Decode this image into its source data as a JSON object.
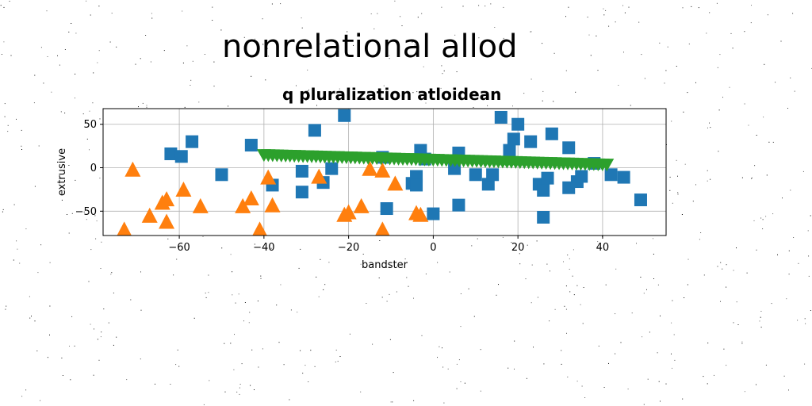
{
  "figure": {
    "suptitle": "nonrelational allod"
  },
  "chart_data": {
    "type": "scatter",
    "title": "q pluralization atloidean",
    "xlabel": "bandster",
    "ylabel": "extrusive",
    "xlim": [
      -78,
      55
    ],
    "ylim": [
      -78,
      68
    ],
    "xticks": [
      -60,
      -40,
      -20,
      0,
      20,
      40
    ],
    "yticks": [
      -50,
      0,
      50
    ],
    "xtick_labels": [
      "−60",
      "−40",
      "−20",
      "0",
      "20",
      "40"
    ],
    "ytick_labels": [
      "−50",
      "0",
      "50"
    ],
    "grid": true,
    "series": [
      {
        "marker": "square",
        "color": "#1f77b4",
        "points": [
          [
            -62,
            16
          ],
          [
            -59.5,
            13
          ],
          [
            -57,
            30
          ],
          [
            -50,
            -8
          ],
          [
            -43,
            26
          ],
          [
            -38,
            -20
          ],
          [
            -31,
            -4
          ],
          [
            -31,
            -28
          ],
          [
            -28,
            43
          ],
          [
            -26,
            -17
          ],
          [
            -24,
            -1
          ],
          [
            -21,
            60
          ],
          [
            -12,
            12
          ],
          [
            -11,
            -47
          ],
          [
            -5,
            -18
          ],
          [
            -4,
            -10
          ],
          [
            -4,
            -20
          ],
          [
            -3,
            20
          ],
          [
            -2,
            10
          ],
          [
            0,
            -53
          ],
          [
            5,
            -1
          ],
          [
            6,
            17
          ],
          [
            6,
            -43
          ],
          [
            10,
            -8
          ],
          [
            13,
            -19
          ],
          [
            14,
            -8
          ],
          [
            16,
            58
          ],
          [
            18,
            20
          ],
          [
            19,
            33
          ],
          [
            20,
            50
          ],
          [
            23,
            30
          ],
          [
            25,
            -19
          ],
          [
            26,
            -26
          ],
          [
            26,
            -57
          ],
          [
            27,
            -12
          ],
          [
            28,
            39
          ],
          [
            32,
            23
          ],
          [
            32,
            -23
          ],
          [
            34,
            -16
          ],
          [
            35,
            -10
          ],
          [
            38,
            5
          ],
          [
            42,
            -8
          ],
          [
            45,
            -11
          ],
          [
            49,
            -37
          ]
        ]
      },
      {
        "marker": "triangle-up",
        "color": "#ff7f0e",
        "points": [
          [
            -73,
            -72
          ],
          [
            -71,
            -3
          ],
          [
            -67,
            -56
          ],
          [
            -64,
            -41
          ],
          [
            -63,
            -37
          ],
          [
            -63,
            -63
          ],
          [
            -59,
            -26
          ],
          [
            -55,
            -45
          ],
          [
            -45,
            -45
          ],
          [
            -43,
            -36
          ],
          [
            -41,
            -72
          ],
          [
            -39,
            -12
          ],
          [
            -38,
            -44
          ],
          [
            -27,
            -11
          ],
          [
            -21,
            -55
          ],
          [
            -20,
            -52
          ],
          [
            -17,
            -45
          ],
          [
            -15,
            -2
          ],
          [
            -12,
            -72
          ],
          [
            -12,
            -4
          ],
          [
            -9,
            -19
          ],
          [
            -4,
            -53
          ],
          [
            -3,
            -55
          ]
        ]
      },
      {
        "marker": "triangle-down",
        "color": "#2ca02c",
        "x_range": [
          -40,
          41
        ],
        "y_range": [
          15,
          4
        ],
        "count": 80
      }
    ]
  }
}
